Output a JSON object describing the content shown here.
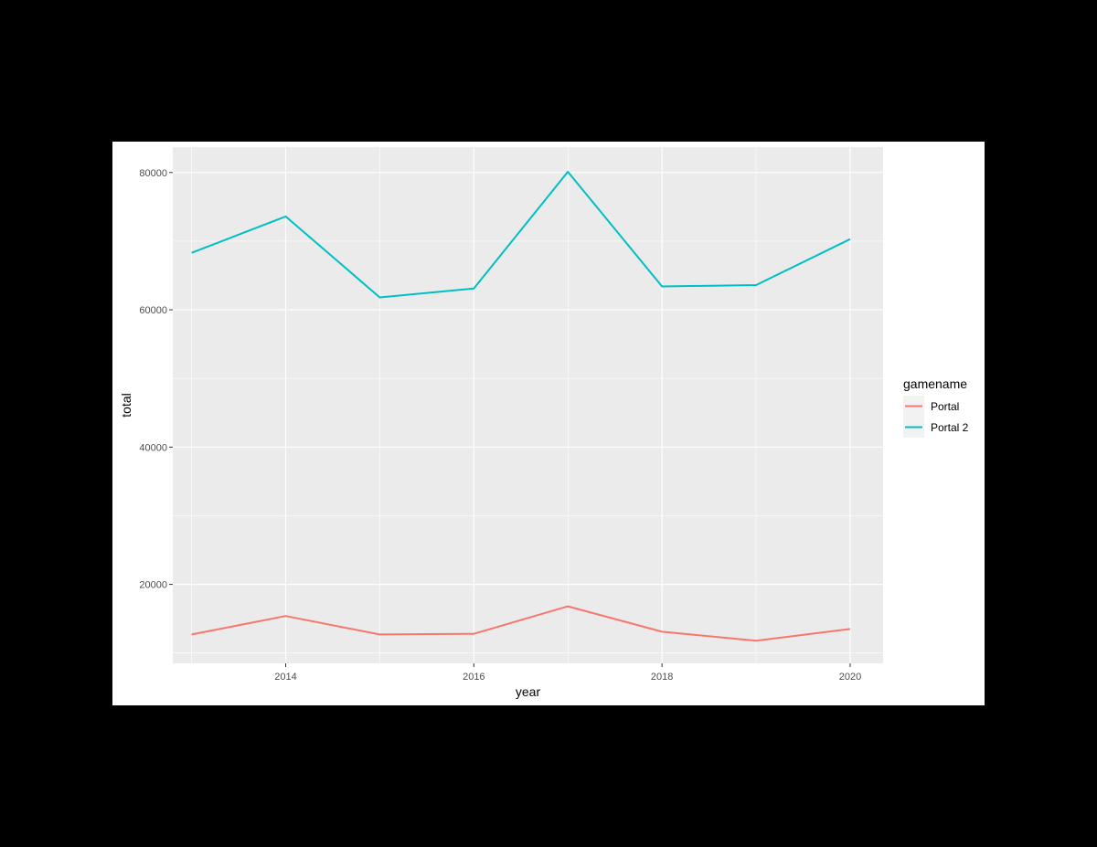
{
  "chart_data": {
    "type": "line",
    "xlabel": "year",
    "ylabel": "total",
    "x": [
      2013,
      2014,
      2015,
      2016,
      2017,
      2018,
      2019,
      2020
    ],
    "xlim": [
      2012.8,
      2020.35
    ],
    "ylim": [
      8500,
      83700
    ],
    "x_ticks": [
      2014,
      2016,
      2018,
      2020
    ],
    "x_tick_labels": [
      "2014",
      "2016",
      "2018",
      "2020"
    ],
    "y_ticks": [
      20000,
      40000,
      60000,
      80000
    ],
    "y_tick_labels": [
      "20000",
      "40000",
      "60000",
      "80000"
    ],
    "grid": true,
    "legend": {
      "title": "gamename",
      "position": "right"
    },
    "series": [
      {
        "name": "Portal",
        "color": "#F8766D",
        "values": [
          12700,
          15400,
          12700,
          12800,
          16800,
          13100,
          11800,
          13500
        ]
      },
      {
        "name": "Portal 2",
        "color": "#00BFC4",
        "values": [
          68300,
          73600,
          61800,
          63100,
          80100,
          63400,
          63600,
          70300
        ]
      }
    ],
    "panel_background": "#EBEBEB",
    "grid_color": "#FFFFFF"
  }
}
